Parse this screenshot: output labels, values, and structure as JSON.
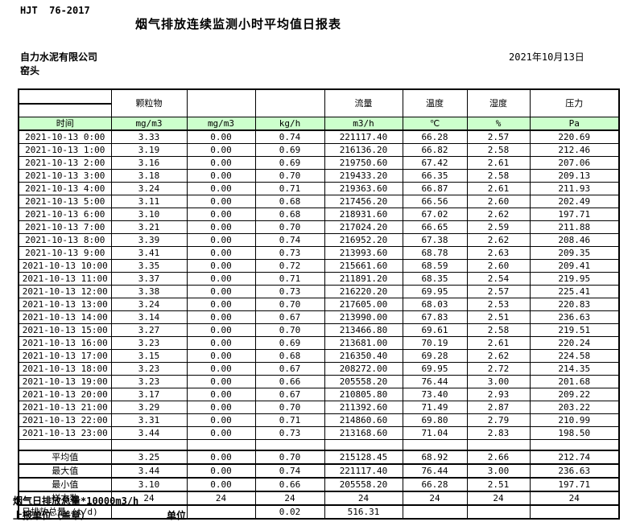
{
  "page": {
    "standard_code": "HJT  76-2017",
    "title": "烟气排放连续监测小时平均值日报表",
    "company": "自力水泥有限公司",
    "station": "窑头",
    "date": "2021年10月13日",
    "footer_note": "烟气日排放总量*10000m3/h",
    "footer_report_unit": "上报单位（盖章）",
    "footer_unit": "单位"
  },
  "colors": {
    "units_row_green": "#ccffcc",
    "border": "#000000"
  },
  "table": {
    "header": {
      "time_label": "时间",
      "groups": [
        "颗粒物",
        "",
        "",
        "流量",
        "温度",
        "湿度",
        "压力"
      ],
      "units": [
        "mg/m3",
        "mg/m3",
        "kg/h",
        "m3/h",
        "℃",
        "%",
        "Pa"
      ]
    },
    "rows": [
      {
        "type": "data",
        "cells": [
          "2021-10-13 0:00",
          "3.33",
          "0.00",
          "0.74",
          "221117.40",
          "66.28",
          "2.57",
          "220.69"
        ]
      },
      {
        "type": "data",
        "cells": [
          "2021-10-13 1:00",
          "3.19",
          "0.00",
          "0.69",
          "216136.20",
          "66.82",
          "2.58",
          "212.46"
        ]
      },
      {
        "type": "data",
        "cells": [
          "2021-10-13 2:00",
          "3.16",
          "0.00",
          "0.69",
          "219750.60",
          "67.42",
          "2.61",
          "207.06"
        ]
      },
      {
        "type": "data",
        "cells": [
          "2021-10-13 3:00",
          "3.18",
          "0.00",
          "0.70",
          "219433.20",
          "66.35",
          "2.58",
          "209.13"
        ]
      },
      {
        "type": "data",
        "cells": [
          "2021-10-13 4:00",
          "3.24",
          "0.00",
          "0.71",
          "219363.60",
          "66.87",
          "2.61",
          "211.93"
        ]
      },
      {
        "type": "data",
        "cells": [
          "2021-10-13 5:00",
          "3.11",
          "0.00",
          "0.68",
          "217456.20",
          "66.56",
          "2.60",
          "202.49"
        ]
      },
      {
        "type": "data",
        "cells": [
          "2021-10-13 6:00",
          "3.10",
          "0.00",
          "0.68",
          "218931.60",
          "67.02",
          "2.62",
          "197.71"
        ]
      },
      {
        "type": "data",
        "cells": [
          "2021-10-13 7:00",
          "3.21",
          "0.00",
          "0.70",
          "217024.20",
          "66.65",
          "2.59",
          "211.88"
        ]
      },
      {
        "type": "data",
        "cells": [
          "2021-10-13 8:00",
          "3.39",
          "0.00",
          "0.74",
          "216952.20",
          "67.38",
          "2.62",
          "208.46"
        ]
      },
      {
        "type": "data",
        "cells": [
          "2021-10-13 9:00",
          "3.41",
          "0.00",
          "0.73",
          "213993.60",
          "68.78",
          "2.63",
          "209.35"
        ]
      },
      {
        "type": "data",
        "cells": [
          "2021-10-13 10:00",
          "3.35",
          "0.00",
          "0.72",
          "215661.60",
          "68.59",
          "2.60",
          "209.41"
        ]
      },
      {
        "type": "data",
        "cells": [
          "2021-10-13 11:00",
          "3.37",
          "0.00",
          "0.71",
          "211891.20",
          "68.35",
          "2.54",
          "219.95"
        ]
      },
      {
        "type": "data",
        "cells": [
          "2021-10-13 12:00",
          "3.38",
          "0.00",
          "0.73",
          "216220.20",
          "69.95",
          "2.57",
          "225.41"
        ]
      },
      {
        "type": "data",
        "cells": [
          "2021-10-13 13:00",
          "3.24",
          "0.00",
          "0.70",
          "217605.00",
          "68.03",
          "2.53",
          "220.83"
        ]
      },
      {
        "type": "data",
        "cells": [
          "2021-10-13 14:00",
          "3.14",
          "0.00",
          "0.67",
          "213990.00",
          "67.83",
          "2.51",
          "236.63"
        ]
      },
      {
        "type": "data",
        "cells": [
          "2021-10-13 15:00",
          "3.27",
          "0.00",
          "0.70",
          "213466.80",
          "69.61",
          "2.58",
          "219.51"
        ]
      },
      {
        "type": "data",
        "cells": [
          "2021-10-13 16:00",
          "3.23",
          "0.00",
          "0.69",
          "213681.00",
          "70.19",
          "2.61",
          "220.24"
        ]
      },
      {
        "type": "data",
        "cells": [
          "2021-10-13 17:00",
          "3.15",
          "0.00",
          "0.68",
          "216350.40",
          "69.28",
          "2.62",
          "224.58"
        ]
      },
      {
        "type": "data",
        "cells": [
          "2021-10-13 18:00",
          "3.23",
          "0.00",
          "0.67",
          "208272.00",
          "69.95",
          "2.72",
          "214.35"
        ]
      },
      {
        "type": "data",
        "cells": [
          "2021-10-13 19:00",
          "3.23",
          "0.00",
          "0.66",
          "205558.20",
          "76.44",
          "3.00",
          "201.68"
        ]
      },
      {
        "type": "data",
        "cells": [
          "2021-10-13 20:00",
          "3.17",
          "0.00",
          "0.67",
          "210805.80",
          "73.40",
          "2.93",
          "209.22"
        ]
      },
      {
        "type": "data",
        "cells": [
          "2021-10-13 21:00",
          "3.29",
          "0.00",
          "0.70",
          "211392.60",
          "71.49",
          "2.87",
          "203.22"
        ]
      },
      {
        "type": "data",
        "cells": [
          "2021-10-13 22:00",
          "3.31",
          "0.00",
          "0.71",
          "214860.60",
          "69.80",
          "2.79",
          "210.99"
        ]
      },
      {
        "type": "data",
        "cells": [
          "2021-10-13 23:00",
          "3.44",
          "0.00",
          "0.73",
          "213168.60",
          "71.04",
          "2.83",
          "198.50"
        ]
      },
      {
        "type": "empty",
        "cells": [
          "",
          "",
          "",
          "",
          "",
          "",
          "",
          ""
        ]
      },
      {
        "type": "summary",
        "cells": [
          "平均值",
          "3.25",
          "0.00",
          "0.70",
          "215128.45",
          "68.92",
          "2.66",
          "212.74"
        ]
      },
      {
        "type": "summary",
        "cells": [
          "最大值",
          "3.44",
          "0.00",
          "0.74",
          "221117.40",
          "76.44",
          "3.00",
          "236.63"
        ]
      },
      {
        "type": "summary",
        "cells": [
          "最小值",
          "3.10",
          "0.00",
          "0.66",
          "205558.20",
          "66.28",
          "2.51",
          "197.71"
        ]
      },
      {
        "type": "summary",
        "cells": [
          "样本数",
          "24",
          "24",
          "24",
          "24",
          "24",
          "24",
          "24"
        ]
      },
      {
        "type": "total",
        "cells": [
          "日排放总量 (t/d)",
          "",
          "",
          "0.02",
          "516.31",
          "",
          "",
          ""
        ]
      }
    ]
  }
}
